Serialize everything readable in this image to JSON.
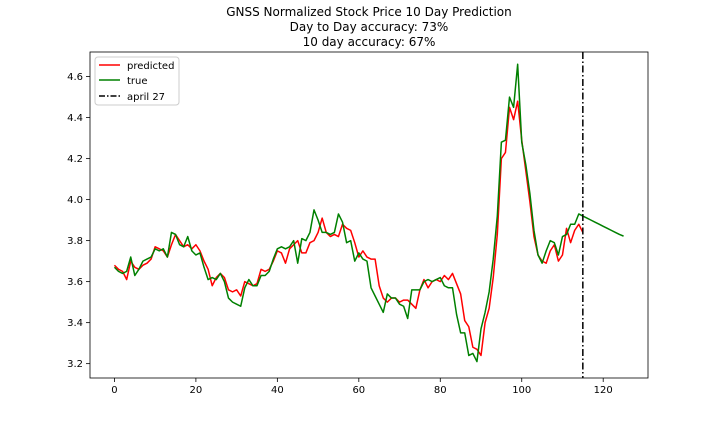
{
  "chart_data": {
    "type": "line",
    "title_lines": [
      "GNSS Normalized Stock Price 10 Day Prediction",
      "Day to Day accuracy: 73%",
      "10 day accuracy: 67%"
    ],
    "xlabel": "",
    "ylabel": "",
    "xlim": [
      -6,
      131
    ],
    "ylim": [
      3.13,
      4.72
    ],
    "x_ticks": [
      0,
      20,
      40,
      60,
      80,
      100,
      120
    ],
    "x_tick_labels": [
      "0",
      "20",
      "40",
      "60",
      "80",
      "100",
      "120"
    ],
    "y_ticks": [
      3.2,
      3.4,
      3.6,
      3.8,
      4.0,
      4.2,
      4.4,
      4.6
    ],
    "y_tick_labels": [
      "3.2",
      "3.4",
      "3.6",
      "3.8",
      "4.0",
      "4.2",
      "4.4",
      "4.6"
    ],
    "grid": false,
    "legend_position": "top-left",
    "series": [
      {
        "name": "predicted",
        "color": "#ff0000",
        "style": "solid",
        "x": [
          0,
          1,
          2,
          3,
          4,
          5,
          6,
          7,
          8,
          9,
          10,
          11,
          12,
          13,
          14,
          15,
          16,
          17,
          18,
          19,
          20,
          21,
          22,
          23,
          24,
          25,
          26,
          27,
          28,
          29,
          30,
          31,
          32,
          33,
          34,
          35,
          36,
          37,
          38,
          39,
          40,
          41,
          42,
          43,
          44,
          45,
          46,
          47,
          48,
          49,
          50,
          51,
          52,
          53,
          54,
          55,
          56,
          57,
          58,
          59,
          60,
          61,
          62,
          63,
          64,
          65,
          66,
          67,
          68,
          69,
          70,
          71,
          72,
          73,
          74,
          75,
          76,
          77,
          78,
          79,
          80,
          81,
          82,
          83,
          84,
          85,
          86,
          87,
          88,
          89,
          90,
          91,
          92,
          93,
          94,
          95,
          96,
          97,
          98,
          99,
          100,
          101,
          102,
          103,
          104,
          105,
          106,
          107,
          108,
          109,
          110,
          111,
          112,
          113,
          114,
          115
        ],
        "values": [
          3.68,
          3.66,
          3.65,
          3.61,
          3.7,
          3.67,
          3.66,
          3.68,
          3.69,
          3.71,
          3.77,
          3.76,
          3.75,
          3.72,
          3.78,
          3.83,
          3.8,
          3.77,
          3.78,
          3.76,
          3.78,
          3.75,
          3.7,
          3.66,
          3.58,
          3.62,
          3.64,
          3.62,
          3.56,
          3.55,
          3.56,
          3.53,
          3.6,
          3.59,
          3.58,
          3.59,
          3.66,
          3.65,
          3.66,
          3.7,
          3.75,
          3.74,
          3.69,
          3.76,
          3.78,
          3.8,
          3.74,
          3.74,
          3.79,
          3.8,
          3.84,
          3.91,
          3.84,
          3.82,
          3.83,
          3.82,
          3.88,
          3.86,
          3.85,
          3.79,
          3.72,
          3.75,
          3.72,
          3.71,
          3.71,
          3.58,
          3.52,
          3.5,
          3.52,
          3.52,
          3.5,
          3.51,
          3.51,
          3.49,
          3.47,
          3.56,
          3.61,
          3.57,
          3.6,
          3.61,
          3.6,
          3.63,
          3.61,
          3.64,
          3.59,
          3.54,
          3.41,
          3.38,
          3.28,
          3.27,
          3.24,
          3.4,
          3.47,
          3.62,
          3.83,
          4.2,
          4.23,
          4.45,
          4.39,
          4.48,
          4.29,
          4.14,
          3.99,
          3.82,
          3.73,
          3.7,
          3.69,
          3.75,
          3.78,
          3.7,
          3.73,
          3.86,
          3.79,
          3.85,
          3.88,
          3.84
        ]
      },
      {
        "name": "true",
        "color": "#008000",
        "style": "solid",
        "x": [
          0,
          1,
          2,
          3,
          4,
          5,
          6,
          7,
          8,
          9,
          10,
          11,
          12,
          13,
          14,
          15,
          16,
          17,
          18,
          19,
          20,
          21,
          22,
          23,
          24,
          25,
          26,
          27,
          28,
          29,
          30,
          31,
          32,
          33,
          34,
          35,
          36,
          37,
          38,
          39,
          40,
          41,
          42,
          43,
          44,
          45,
          46,
          47,
          48,
          49,
          50,
          51,
          52,
          53,
          54,
          55,
          56,
          57,
          58,
          59,
          60,
          61,
          62,
          63,
          64,
          65,
          66,
          67,
          68,
          69,
          70,
          71,
          72,
          73,
          74,
          75,
          76,
          77,
          78,
          79,
          80,
          81,
          82,
          83,
          84,
          85,
          86,
          87,
          88,
          89,
          90,
          91,
          92,
          93,
          94,
          95,
          96,
          97,
          98,
          99,
          100,
          101,
          102,
          103,
          104,
          105,
          106,
          107,
          108,
          109,
          110,
          111,
          112,
          113,
          114,
          115,
          116,
          117,
          118,
          119,
          120,
          121,
          122,
          123,
          124,
          125
        ],
        "values": [
          3.67,
          3.65,
          3.64,
          3.65,
          3.72,
          3.63,
          3.66,
          3.7,
          3.71,
          3.72,
          3.76,
          3.75,
          3.76,
          3.72,
          3.84,
          3.83,
          3.78,
          3.77,
          3.82,
          3.75,
          3.73,
          3.74,
          3.67,
          3.61,
          3.62,
          3.61,
          3.64,
          3.6,
          3.52,
          3.5,
          3.49,
          3.48,
          3.57,
          3.61,
          3.58,
          3.58,
          3.63,
          3.63,
          3.65,
          3.71,
          3.76,
          3.77,
          3.76,
          3.77,
          3.8,
          3.69,
          3.81,
          3.8,
          3.84,
          3.95,
          3.9,
          3.84,
          3.84,
          3.83,
          3.84,
          3.93,
          3.89,
          3.79,
          3.8,
          3.7,
          3.74,
          3.71,
          3.7,
          3.57,
          3.53,
          3.49,
          3.45,
          3.54,
          3.52,
          3.52,
          3.49,
          3.48,
          3.42,
          3.56,
          3.56,
          3.56,
          3.6,
          3.61,
          3.6,
          3.61,
          3.62,
          3.58,
          3.57,
          3.57,
          3.44,
          3.35,
          3.35,
          3.24,
          3.25,
          3.21,
          3.37,
          3.45,
          3.55,
          3.71,
          3.92,
          4.28,
          4.29,
          4.5,
          4.45,
          4.66,
          4.28,
          4.17,
          4.03,
          3.85,
          3.73,
          3.69,
          3.75,
          3.8,
          3.79,
          3.73,
          3.82,
          3.83,
          3.88,
          3.88,
          3.93,
          3.92,
          3.91,
          3.9,
          3.89,
          3.88,
          3.87,
          3.86,
          3.85,
          3.84,
          3.83,
          3.822
        ]
      }
    ],
    "vline": {
      "name": "april 27",
      "x": 115,
      "color": "#000000",
      "style": "dashdot"
    }
  }
}
